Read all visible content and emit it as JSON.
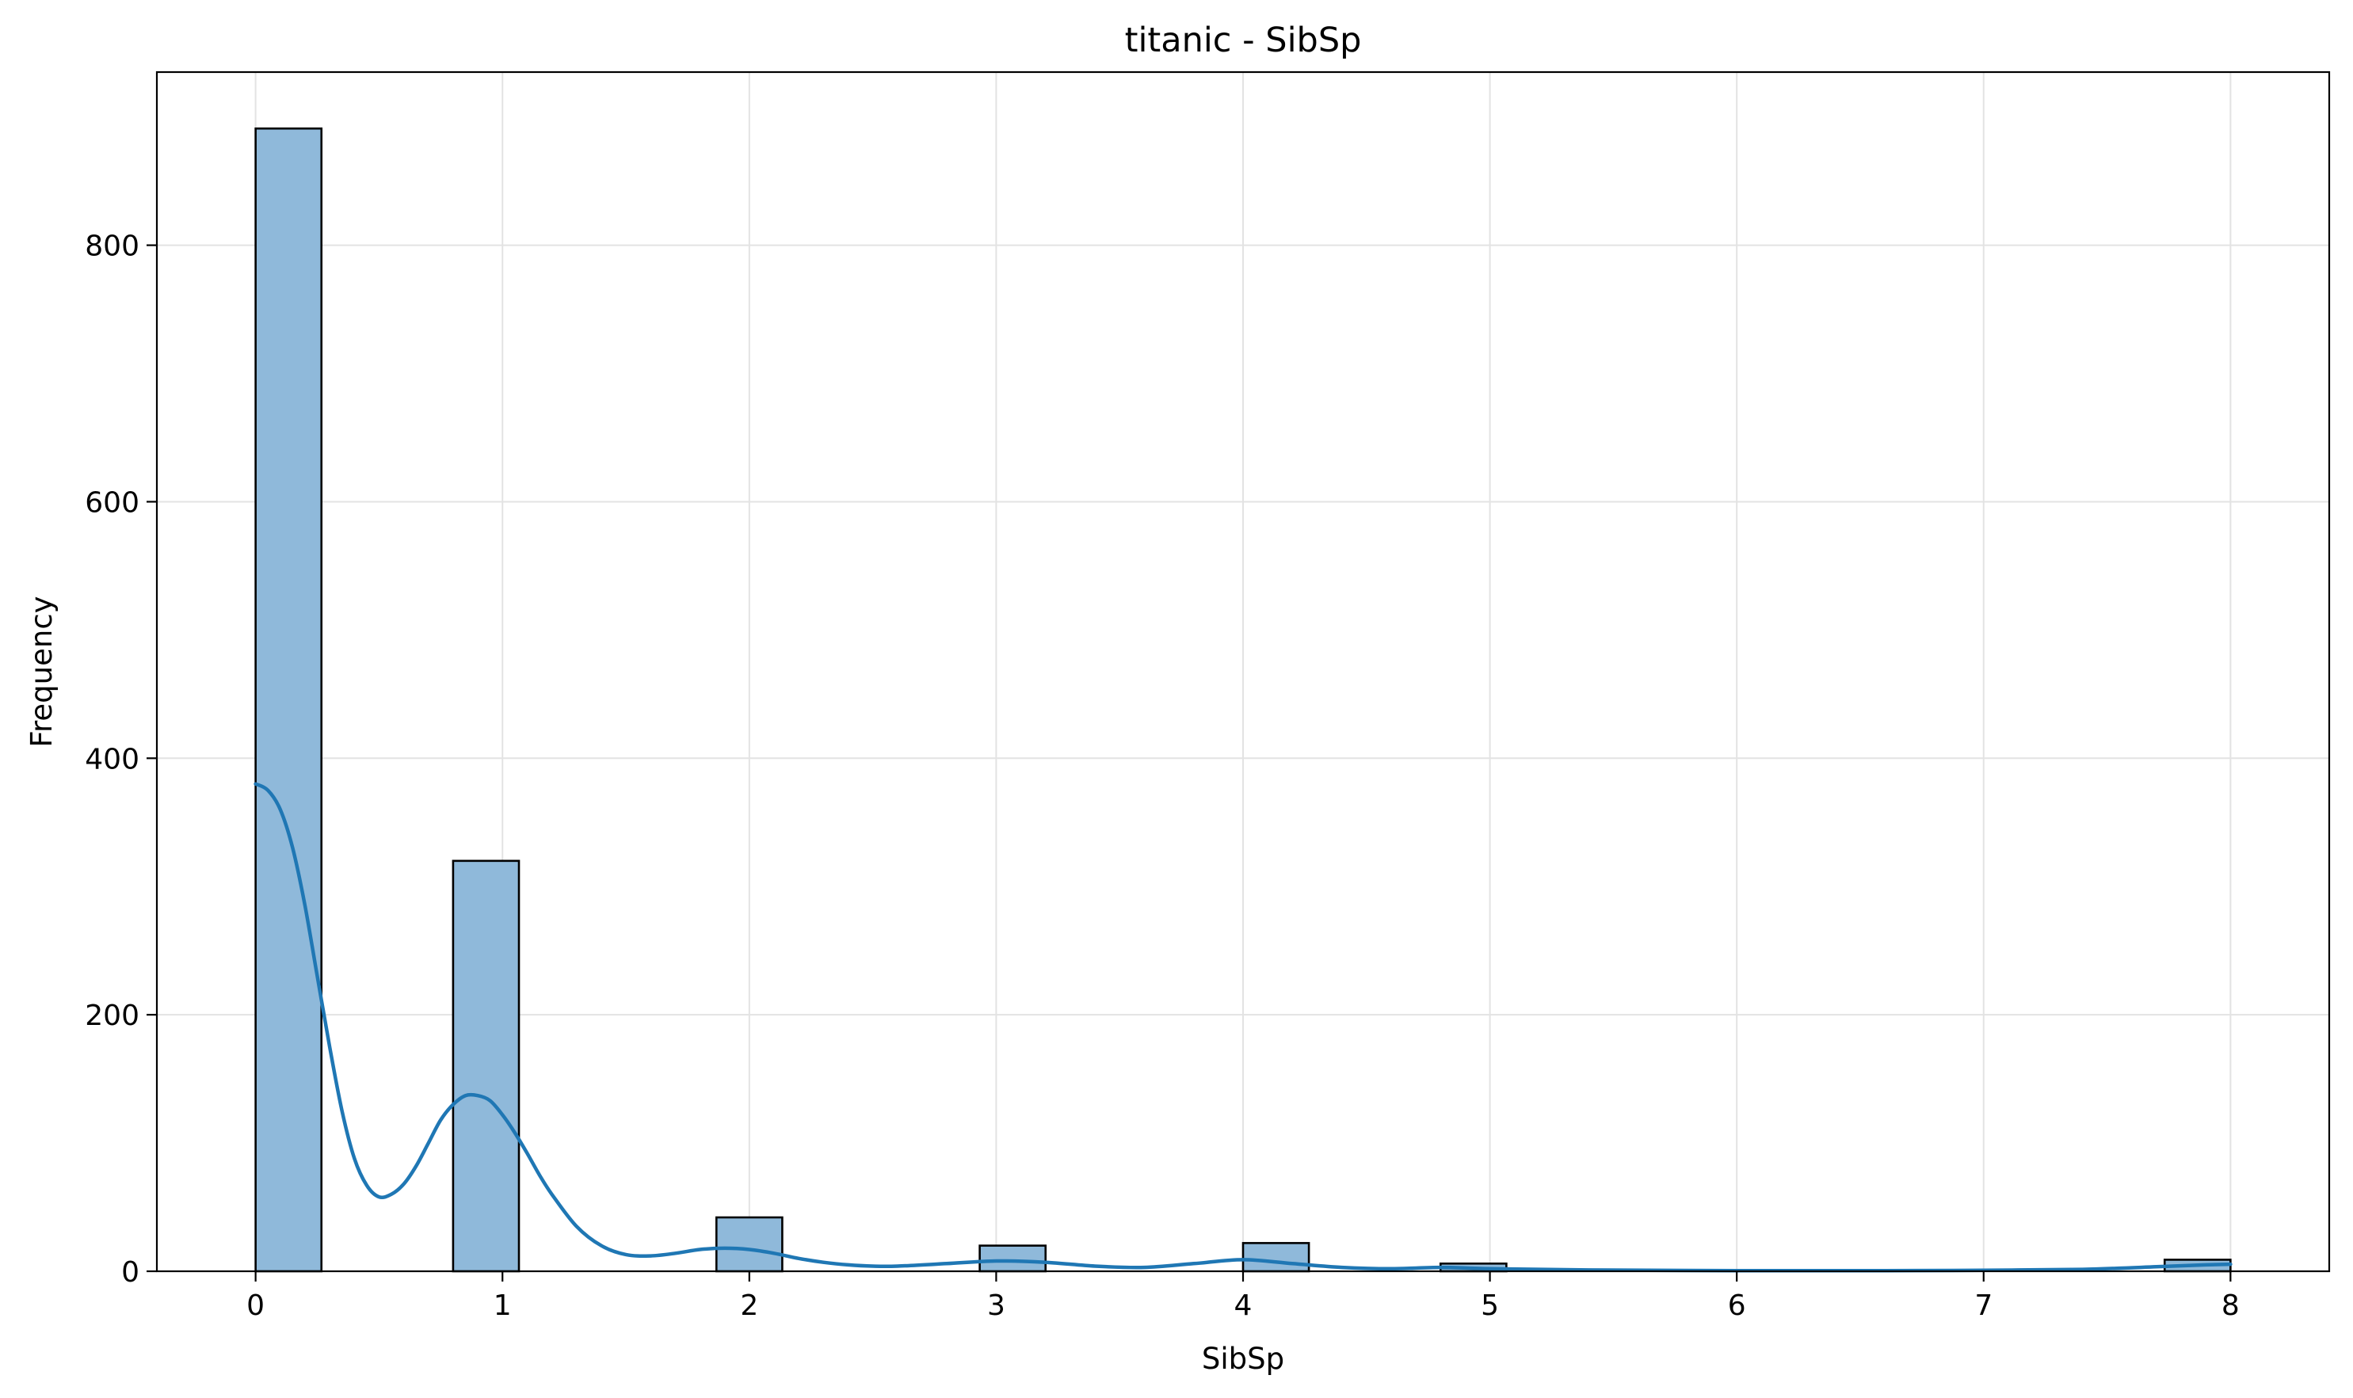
{
  "chart_data": {
    "type": "bar",
    "title": "titanic - SibSp",
    "xlabel": "SibSp",
    "ylabel": "Frequency",
    "xlim": [
      -0.4,
      8.4
    ],
    "ylim": [
      0,
      935
    ],
    "xticks": [
      0,
      1,
      2,
      3,
      4,
      5,
      6,
      7,
      8
    ],
    "yticks": [
      0,
      200,
      400,
      600,
      800
    ],
    "grid": true,
    "bin_width": 0.2667,
    "bins": [
      {
        "start": 0.0,
        "value": 891
      },
      {
        "start": 0.8,
        "value": 320
      },
      {
        "start": 1.8667,
        "value": 42
      },
      {
        "start": 2.9333,
        "value": 20
      },
      {
        "start": 4.0,
        "value": 22
      },
      {
        "start": 4.8,
        "value": 6
      },
      {
        "start": 7.7333,
        "value": 9
      }
    ],
    "kde": {
      "x": [
        0,
        0.05,
        0.1,
        0.15,
        0.2,
        0.25,
        0.3,
        0.35,
        0.4,
        0.45,
        0.5,
        0.55,
        0.6,
        0.65,
        0.7,
        0.75,
        0.8,
        0.85,
        0.9,
        0.95,
        1.0,
        1.05,
        1.1,
        1.15,
        1.2,
        1.3,
        1.4,
        1.5,
        1.6,
        1.7,
        1.8,
        1.9,
        2.0,
        2.1,
        2.2,
        2.3,
        2.4,
        2.5,
        2.6,
        2.8,
        3.0,
        3.2,
        3.4,
        3.6,
        3.8,
        4.0,
        4.2,
        4.4,
        4.6,
        4.8,
        5.0,
        5.4,
        6.0,
        6.6,
        7.0,
        7.4,
        7.7,
        7.9,
        8.0
      ],
      "y": [
        380,
        375,
        360,
        330,
        285,
        230,
        175,
        125,
        88,
        67,
        58,
        60,
        68,
        82,
        100,
        118,
        130,
        137,
        137,
        133,
        122,
        108,
        92,
        75,
        60,
        35,
        20,
        13,
        12,
        14,
        17,
        18,
        17,
        14,
        10,
        7,
        5,
        4,
        4,
        6,
        8,
        7,
        4,
        3,
        6,
        9,
        6,
        3,
        2,
        3,
        2,
        1,
        0.5,
        0.5,
        0.8,
        1.5,
        3.5,
        5,
        5.5
      ]
    },
    "colors": {
      "bar_fill": "#8fb9da",
      "bar_edge": "#000000",
      "kde_line": "#1f77b4",
      "grid": "#e3e3e3"
    }
  }
}
